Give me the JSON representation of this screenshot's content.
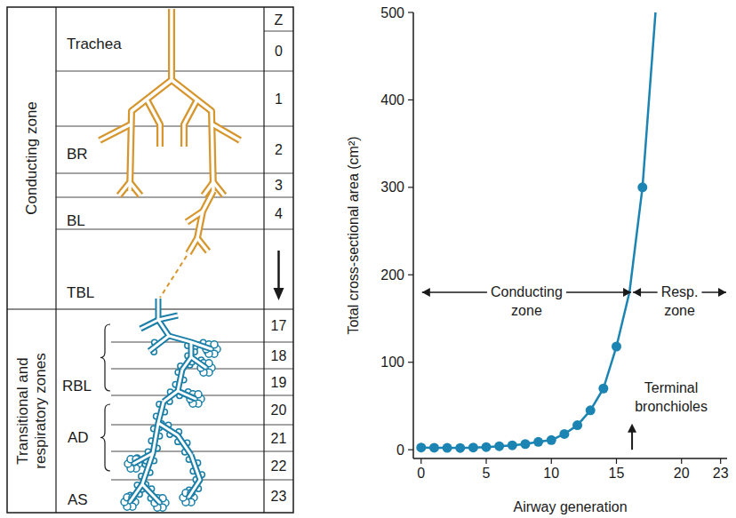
{
  "diagram": {
    "zones": [
      "Conducting zone",
      "Transitional and respiratory zones"
    ],
    "z_header": "Z",
    "z_values": [
      0,
      1,
      2,
      3,
      4,
      17,
      18,
      19,
      20,
      21,
      22,
      23
    ],
    "labels": [
      "Trachea",
      "BR",
      "BL",
      "TBL",
      "RBL",
      "AD",
      "AS"
    ]
  },
  "chart_data": {
    "type": "scatter",
    "xlabel": "Airway generation",
    "ylabel": "Total cross-sectional area (cm²)",
    "xlim": [
      -0.6,
      23.5
    ],
    "ylim": [
      -10,
      500
    ],
    "xticks": [
      0,
      5,
      10,
      15,
      20,
      23
    ],
    "yticks": [
      0,
      100,
      200,
      300,
      400,
      500
    ],
    "grid": false,
    "series": [
      {
        "type": "scatter",
        "marker": "circle",
        "color": "#1b84b3",
        "x": [
          0,
          1,
          2,
          3,
          4,
          5,
          6,
          7,
          8,
          9,
          10,
          11,
          12,
          13,
          14,
          15,
          17
        ],
        "values": [
          2.5,
          2.3,
          2.1,
          2.0,
          2.5,
          3.0,
          4.0,
          5.0,
          6.5,
          9,
          11,
          18,
          28,
          45,
          70,
          118,
          300
        ]
      },
      {
        "type": "line",
        "line_style": "solid",
        "color": "#1b84b3",
        "x": [
          0,
          1,
          2,
          3,
          4,
          5,
          6,
          7,
          8,
          9,
          10,
          11,
          12,
          13,
          14,
          15,
          16,
          17,
          18
        ],
        "values": [
          2.5,
          2.3,
          2.1,
          2.0,
          2.5,
          3.0,
          4.0,
          5.0,
          6.5,
          9,
          11,
          18,
          28,
          45,
          70,
          118,
          180,
          300,
          500
        ]
      }
    ],
    "annotations": [
      {
        "text": "Conducting zone",
        "x": [
          0,
          16.2
        ],
        "y": 180
      },
      {
        "text": "Resp. zone",
        "x": [
          16.2,
          23.5
        ],
        "y": 180
      },
      {
        "text": "Terminal bronchioles",
        "x": 16.2,
        "y": [
          0,
          30
        ]
      }
    ]
  }
}
